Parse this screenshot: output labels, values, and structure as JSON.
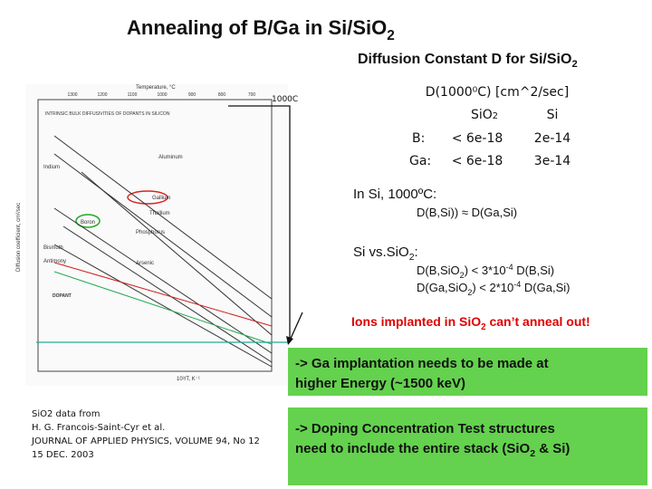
{
  "title": {
    "main": "Annealing of B/Ga in Si/SiO",
    "sub": "2"
  },
  "subtitle": {
    "main": "Diffusion Constant D for Si/SiO",
    "sub": "2"
  },
  "figure": {
    "heading": "Temperature, °C",
    "top_ticks": [
      "1300",
      "1200",
      "1100",
      "1000",
      "900",
      "800",
      "700"
    ],
    "inner_title": "INTRINSIC BULK DIFFUSIVITIES OF DOPANTS IN SILICON",
    "y_label": "Diffusion coefficient, cm²/sec",
    "x_label": "10³/T, K⁻¹",
    "dopants": [
      "Aluminum",
      "Gallium",
      "Thallium",
      "Boron",
      "Phosphorus",
      "Bismuth",
      "Antimony",
      "Arsenic",
      "Indium"
    ],
    "legend_title": "DOPANT",
    "marker": "1000C"
  },
  "table": {
    "header": "D(1000⁰C) [cm^2/sec]",
    "columns": [
      {
        "main": "SiO",
        "sub": "2"
      },
      "Si"
    ],
    "rows": [
      [
        "B:",
        "< 6e-18",
        "2e-14"
      ],
      [
        "Ga:",
        "< 6e-18",
        "3e-14"
      ]
    ]
  },
  "si_heading": "In Si, 1000ºC:",
  "si_relation": "D(B,Si)) ≈ D(Ga,Si)",
  "compare_heading": {
    "main": "Si vs.SiO",
    "sub": "2",
    "end": ":"
  },
  "compare_lines": [
    {
      "a": "D(B,SiO",
      "sub": "2",
      "b": ") < 3*10",
      "sup": "-4",
      "c": " D(B,Si)"
    },
    {
      "a": "D(Ga,SiO",
      "sub": "2",
      "b": ") < 2*10",
      "sup": "-4",
      "c": " D(Ga,Si)"
    }
  ],
  "warning": {
    "a": "Ions implanted in SiO",
    "sub": "2",
    "b": " can’t anneal out!"
  },
  "box1": [
    "-> Ga implantation needs to be made at",
    "higher Energy (~1500 keV)"
  ],
  "box2": {
    "line1": "-> Doping Concentration Test structures",
    "a": "need to include the entire stack (SiO",
    "sub": "2",
    "b": " & Si)"
  },
  "citation": [
    "SiO2 data from",
    "H. G. Francois-Saint-Cyr et al.",
    "JOURNAL OF APPLIED PHYSICS, VOLUME 94, No 12",
    "15 DEC. 2003"
  ]
}
